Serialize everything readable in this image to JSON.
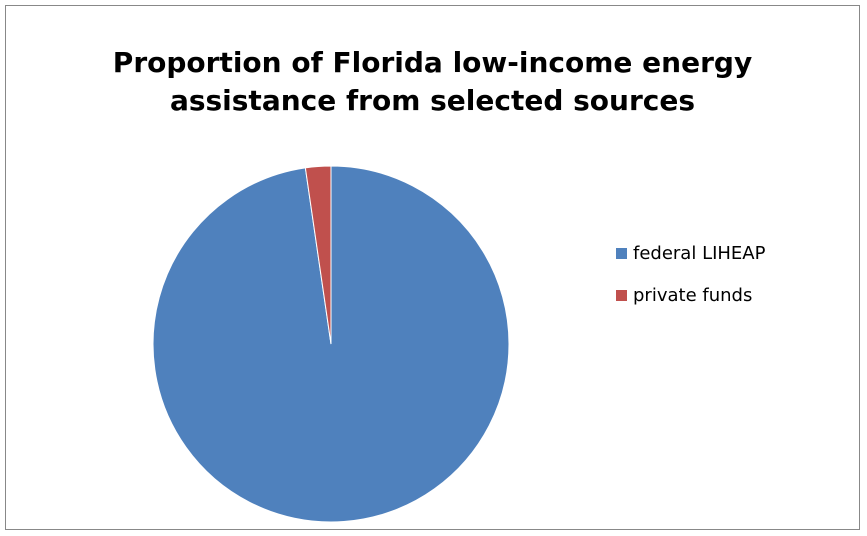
{
  "chart_data": {
    "type": "pie",
    "title_lines": [
      "Proportion of Florida low-income energy",
      "assistance from selected sources"
    ],
    "categories": [
      "federal LIHEAP",
      "private funds"
    ],
    "values": [
      97.7,
      2.3
    ],
    "colors": [
      "#4F81BD",
      "#C0504D"
    ],
    "legend_position": "right",
    "data_labels": false
  }
}
